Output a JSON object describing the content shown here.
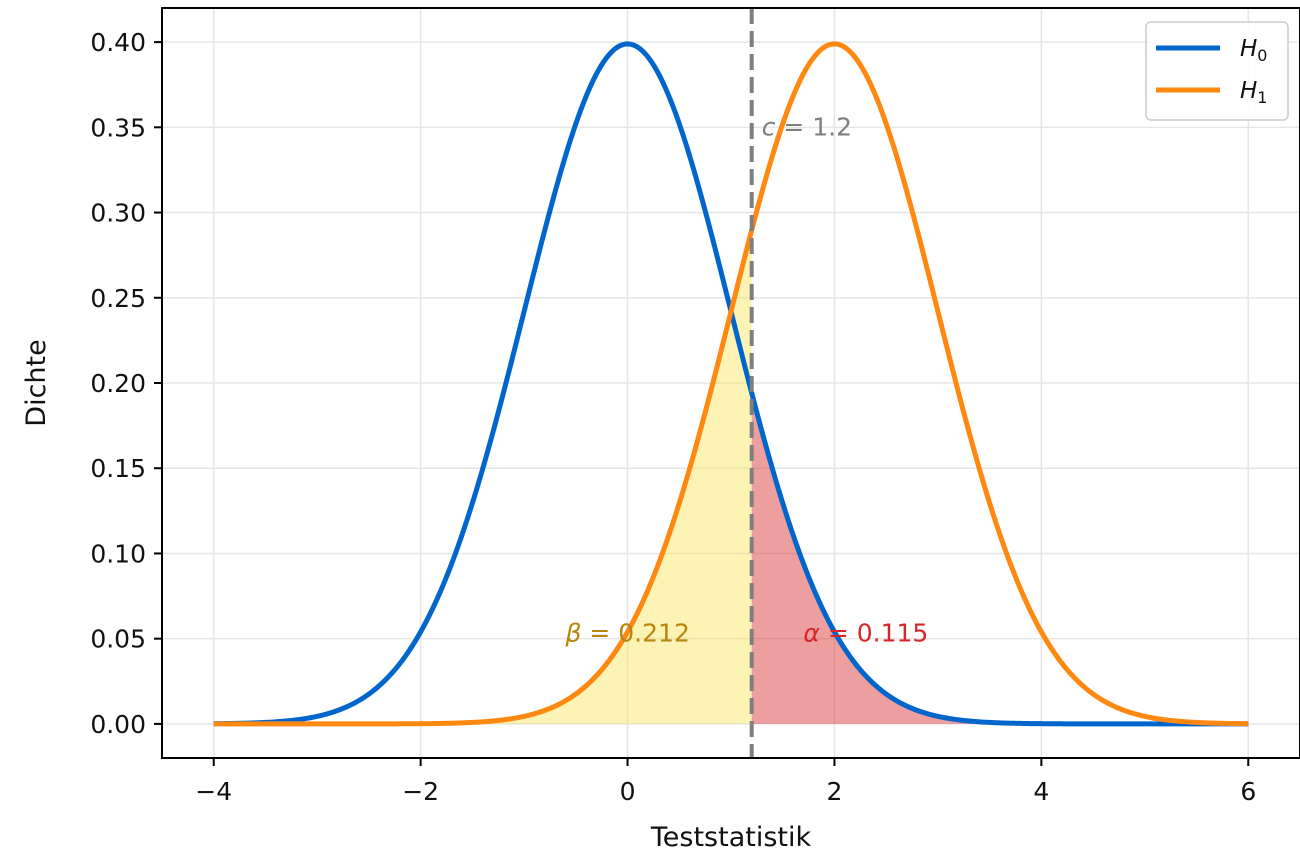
{
  "chart_data": {
    "type": "line",
    "title": "",
    "xlabel": "Teststatistik",
    "ylabel": "Dichte",
    "xlim": [
      -4.5,
      6.5
    ],
    "ylim": [
      -0.02,
      0.42
    ],
    "xticks": [
      -4,
      -2,
      0,
      2,
      4,
      6
    ],
    "xtick_labels": [
      "−4",
      "−2",
      "0",
      "2",
      "4",
      "6"
    ],
    "yticks": [
      0.0,
      0.05,
      0.1,
      0.15,
      0.2,
      0.25,
      0.3,
      0.35,
      0.4
    ],
    "ytick_labels": [
      "0.00",
      "0.05",
      "0.10",
      "0.15",
      "0.20",
      "0.25",
      "0.30",
      "0.35",
      "0.40"
    ],
    "grid": true,
    "legend_position": "top-right",
    "x_range": [
      -4,
      6
    ],
    "series": [
      {
        "name": "H0",
        "label_main": "H",
        "label_sub": "0",
        "distribution": "normal",
        "mean": 0,
        "sd": 1,
        "color": "#0066cc"
      },
      {
        "name": "H1",
        "label_main": "H",
        "label_sub": "1",
        "distribution": "normal",
        "mean": 2,
        "sd": 1,
        "color": "#ff8811"
      }
    ],
    "critical_value": {
      "x": 1.2,
      "label_sym": "c",
      "label_rest": " = 1.2",
      "color": "#7f7f7f"
    },
    "shaded_regions": [
      {
        "name": "beta",
        "under_series": "H1",
        "from": -4,
        "to": 1.2,
        "color": "#f8e45c",
        "opacity": 0.45
      },
      {
        "name": "alpha",
        "under_series": "H0",
        "from": 1.2,
        "to": 6,
        "color": "#d62728",
        "opacity": 0.45
      }
    ],
    "annotations": [
      {
        "sym": "β",
        "rest": " = 0.212",
        "x": -0.6,
        "y": 0.05,
        "color": "#b8860b"
      },
      {
        "sym": "α",
        "rest": " = 0.115",
        "x": 1.7,
        "y": 0.05,
        "color": "#d62728"
      }
    ]
  }
}
